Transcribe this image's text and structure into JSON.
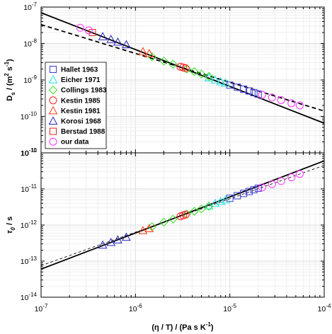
{
  "colors": {
    "Hallet 1963": "#3a3ad6",
    "Eicher 1971": "#22e0e0",
    "Collings 1983": "#33dd22",
    "Kestin 1985": "#ff2020",
    "Kestin 1981": "#ff3a14",
    "Korosi 1968": "#2424bb",
    "Berstad 1988": "#e02020",
    "our data": "#ff33ff"
  },
  "legend": [
    {
      "name": "Hallet 1963",
      "marker": "square"
    },
    {
      "name": "Eicher 1971",
      "marker": "triangle"
    },
    {
      "name": "Collings 1983",
      "marker": "diamond"
    },
    {
      "name": "Kestin 1985",
      "marker": "circle"
    },
    {
      "name": "Kestin 1981",
      "marker": "triangle"
    },
    {
      "name": "Korosi 1968",
      "marker": "triangle"
    },
    {
      "name": "Berstad 1988",
      "marker": "square"
    },
    {
      "name": "our data",
      "marker": "circle"
    }
  ],
  "chart_data": [
    {
      "type": "scatter",
      "xscale": "log",
      "yscale": "log",
      "xlim": [
        1e-07,
        0.0001
      ],
      "ylim": [
        1e-11,
        1e-07
      ],
      "xlabel": "",
      "ylabel": "D_s / (m^2 s^-1)",
      "grid": true,
      "legend_position": "bottom-left",
      "x_tick_labels": [
        "10^-7",
        "10^-6",
        "10^-5",
        "10^-4"
      ],
      "y_tick_labels": [
        "10^-11",
        "10^-10",
        "10^-9",
        "10^-8",
        "10^-7"
      ],
      "series": [
        {
          "name": "Hallet 1963",
          "x": [
            1e-05,
            1.2e-05,
            1.4e-05,
            1.6e-05,
            1.8e-05,
            2e-05
          ],
          "y": [
            7.2e-10,
            6.3e-10,
            5.6e-10,
            5e-10,
            4.5e-10,
            4.1e-10
          ]
        },
        {
          "name": "Eicher 1971",
          "x": [
            6e-06,
            7e-06,
            8e-06,
            9e-06
          ],
          "y": [
            1.15e-09,
            1e-09,
            9e-10,
            8.2e-10
          ]
        },
        {
          "name": "Collings 1983",
          "x": [
            1.5e-06,
            2e-06,
            2.5e-06,
            3.5e-06,
            4.2e-06,
            5e-06,
            6e-06
          ],
          "y": [
            4.3e-09,
            3.3e-09,
            2.7e-09,
            2e-09,
            1.7e-09,
            1.45e-09,
            1.25e-09
          ]
        },
        {
          "name": "Kestin 1985",
          "x": [
            3e-06,
            3.2e-06,
            3.4e-06
          ],
          "y": [
            2.3e-09,
            2.2e-09,
            2.1e-09
          ]
        },
        {
          "name": "Kestin 1981",
          "x": [
            1.2e-06,
            1.4e-06
          ],
          "y": [
            6e-09,
            5.3e-09
          ]
        },
        {
          "name": "Korosi 1968",
          "x": [
            4.5e-07,
            5.5e-07,
            6.5e-07,
            8e-07
          ],
          "y": [
            1.55e-08,
            1.3e-08,
            1.1e-08,
            9.3e-09
          ]
        },
        {
          "name": "Berstad 1988",
          "x": [
            3.5e-07
          ],
          "y": [
            2e-08
          ]
        },
        {
          "name": "our data",
          "x": [
            2.6e-07,
            3.2e-07,
            2.2e-05,
            2.8e-05,
            3.5e-05,
            4.5e-05,
            5.5e-05
          ],
          "y": [
            2.7e-08,
            2.3e-08,
            3.9e-10,
            3.3e-10,
            2.8e-10,
            2.3e-10,
            2e-10
          ]
        }
      ],
      "lines": [
        {
          "style": "solid",
          "x": [
            1e-07,
            0.0001
          ],
          "y": [
            7e-08,
            6.5e-11
          ]
        },
        {
          "style": "dashed",
          "x": [
            1e-07,
            0.0001
          ],
          "y": [
            3.3e-08,
            1.4e-10
          ]
        }
      ]
    },
    {
      "type": "scatter",
      "xscale": "log",
      "yscale": "log",
      "xlim": [
        1e-07,
        0.0001
      ],
      "ylim": [
        1e-14,
        1e-10
      ],
      "xlabel": "(η / T) / (Pa s K^-1)",
      "ylabel": "τ_0 / s",
      "grid": true,
      "x_tick_labels": [
        "10^-7",
        "10^-6",
        "10^-5",
        "10^-4"
      ],
      "y_tick_labels": [
        "10^-14",
        "10^-13",
        "10^-12",
        "10^-11",
        "10^-10"
      ],
      "series": [
        {
          "name": "Hallet 1963",
          "x": [
            1e-05,
            1.2e-05,
            1.4e-05,
            1.6e-05,
            1.8e-05,
            2e-05
          ],
          "y": [
            5.5e-12,
            6.5e-12,
            7.5e-12,
            8.5e-12,
            9.5e-12,
            1.05e-11
          ]
        },
        {
          "name": "Eicher 1971",
          "x": [
            6e-06,
            7e-06,
            8e-06,
            9e-06
          ],
          "y": [
            3.4e-12,
            4e-12,
            4.5e-12,
            5e-12
          ]
        },
        {
          "name": "Collings 1983",
          "x": [
            1.5e-06,
            2e-06,
            2.5e-06,
            3.5e-06,
            4.2e-06,
            5e-06,
            6e-06
          ],
          "y": [
            9e-13,
            1.2e-12,
            1.45e-12,
            2e-12,
            2.4e-12,
            2.8e-12,
            3.3e-12
          ]
        },
        {
          "name": "Kestin 1985",
          "x": [
            3e-06,
            3.2e-06,
            3.4e-06
          ],
          "y": [
            1.75e-12,
            1.85e-12,
            1.95e-12
          ]
        },
        {
          "name": "Kestin 1981",
          "x": [
            1.2e-06,
            1.4e-06
          ],
          "y": [
            7e-13,
            8e-13
          ]
        },
        {
          "name": "Korosi 1968",
          "x": [
            4.5e-07,
            5.5e-07,
            6.5e-07,
            8e-07
          ],
          "y": [
            2.8e-13,
            3.3e-13,
            3.9e-13,
            4.6e-13
          ]
        },
        {
          "name": "our data",
          "x": [
            2.2e-05,
            2.8e-05,
            3.5e-05,
            4.5e-05,
            5.5e-05
          ],
          "y": [
            1.1e-11,
            1.35e-11,
            1.65e-11,
            2.1e-11,
            2.6e-11
          ]
        }
      ],
      "lines": [
        {
          "style": "solid",
          "x": [
            1e-07,
            0.0001
          ],
          "y": [
            6e-14,
            6e-11
          ]
        },
        {
          "style": "dashed",
          "x": [
            1e-07,
            0.0001
          ],
          "y": [
            7.5e-14,
            4.5e-11
          ]
        }
      ]
    }
  ]
}
